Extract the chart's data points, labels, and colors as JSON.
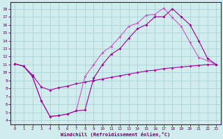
{
  "line1_x": [
    0,
    1,
    2,
    3,
    4,
    5,
    6,
    7,
    8,
    9,
    10,
    11,
    12,
    13,
    14,
    15,
    16,
    17,
    18,
    19,
    20,
    21,
    22,
    23
  ],
  "line1_y": [
    11.1,
    10.8,
    9.5,
    6.5,
    4.5,
    4.6,
    4.8,
    5.2,
    5.3,
    9.3,
    11.0,
    12.3,
    13.0,
    14.3,
    15.5,
    16.0,
    17.0,
    17.0,
    18.0,
    17.0,
    16.0,
    14.0,
    11.8,
    11.0
  ],
  "line2_x": [
    0,
    1,
    2,
    3,
    4,
    5,
    6,
    7,
    8,
    9,
    10,
    11,
    12,
    13,
    14,
    15,
    16,
    17,
    18,
    19,
    20,
    21,
    22,
    23
  ],
  "line2_y": [
    11.1,
    10.8,
    9.5,
    6.5,
    4.5,
    4.6,
    4.8,
    5.2,
    9.5,
    11.0,
    12.5,
    13.3,
    14.5,
    15.8,
    16.2,
    17.2,
    17.3,
    18.1,
    16.9,
    15.8,
    13.8,
    11.9,
    11.5,
    11.0
  ],
  "line3_x": [
    0,
    1,
    2,
    3,
    4,
    5,
    6,
    7,
    8,
    9,
    10,
    11,
    12,
    13,
    14,
    15,
    16,
    17,
    18,
    19,
    20,
    21,
    22,
    23
  ],
  "line3_y": [
    11.1,
    10.8,
    9.7,
    8.2,
    7.8,
    8.1,
    8.3,
    8.6,
    8.8,
    9.0,
    9.2,
    9.4,
    9.6,
    9.8,
    10.0,
    10.2,
    10.3,
    10.5,
    10.6,
    10.7,
    10.8,
    10.9,
    11.0,
    11.0
  ],
  "line1_color": "#990099",
  "line2_color": "#cc55cc",
  "line3_color": "#aa00aa",
  "bg_color": "#d0ecec",
  "grid_color": "#aad4d4",
  "axis_color": "#660066",
  "tick_color": "#660066",
  "xlabel": "Windchill (Refroidissement éolien,°C)",
  "xlim": [
    -0.5,
    23.5
  ],
  "ylim": [
    3.5,
    18.8
  ],
  "yticks": [
    4,
    5,
    6,
    7,
    8,
    9,
    10,
    11,
    12,
    13,
    14,
    15,
    16,
    17,
    18
  ],
  "xticks": [
    0,
    1,
    2,
    3,
    4,
    5,
    6,
    7,
    8,
    9,
    10,
    11,
    12,
    13,
    14,
    15,
    16,
    17,
    18,
    19,
    20,
    21,
    22,
    23
  ]
}
